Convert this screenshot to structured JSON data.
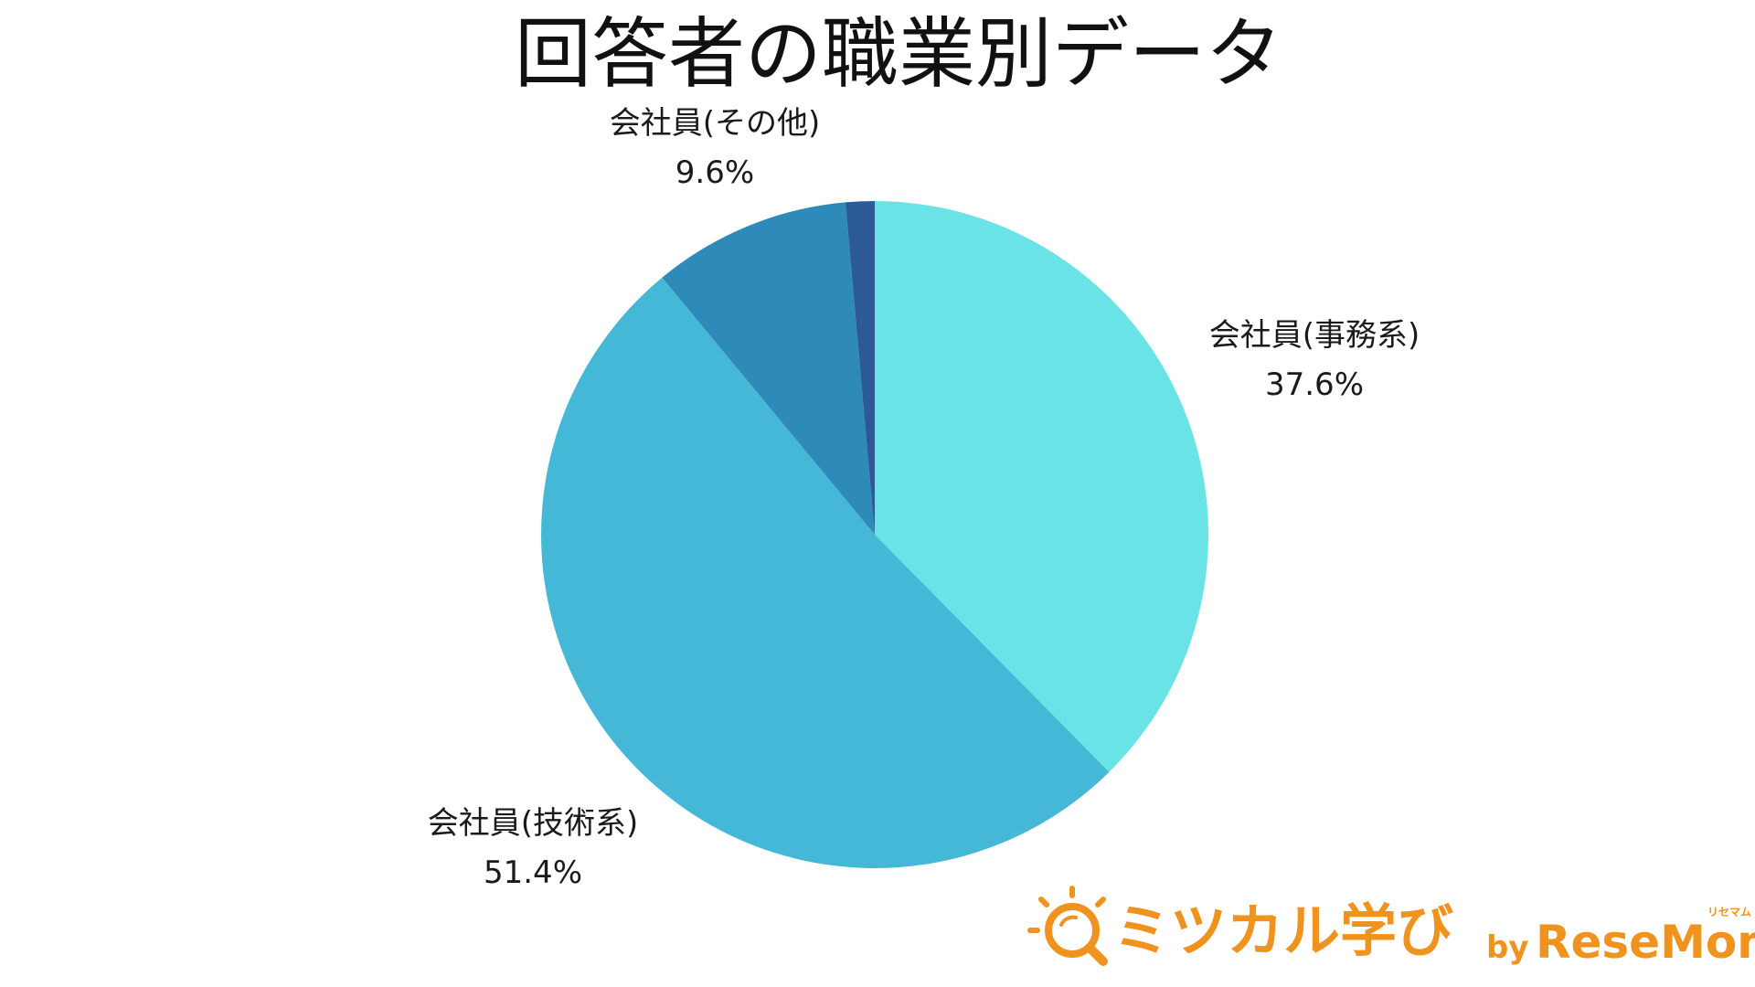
{
  "chart_data": {
    "type": "pie",
    "title": "回答者の職業別データ",
    "slices": [
      {
        "label": "会社員(事務系)",
        "value": 37.6,
        "value_label": "37.6%",
        "color": "#6ae3e6"
      },
      {
        "label": "会社員(技術系)",
        "value": 51.4,
        "value_label": "51.4%",
        "color": "#44b8d6"
      },
      {
        "label": "会社員(その他)",
        "value": 9.6,
        "value_label": "9.6%",
        "color": "#2e8ab8"
      },
      {
        "label": "",
        "value": 1.4,
        "value_label": "",
        "color": "#2c5a96"
      }
    ],
    "start_angle": "top",
    "direction": "clockwise"
  },
  "logo": {
    "brand": "ミツカル学び",
    "by": "by",
    "partner": "ReseMom",
    "partner_kana": "リセマム",
    "brand_color": "#f0921e",
    "partner_color": "#f0921e",
    "icon": "magnifier-sun-icon"
  }
}
